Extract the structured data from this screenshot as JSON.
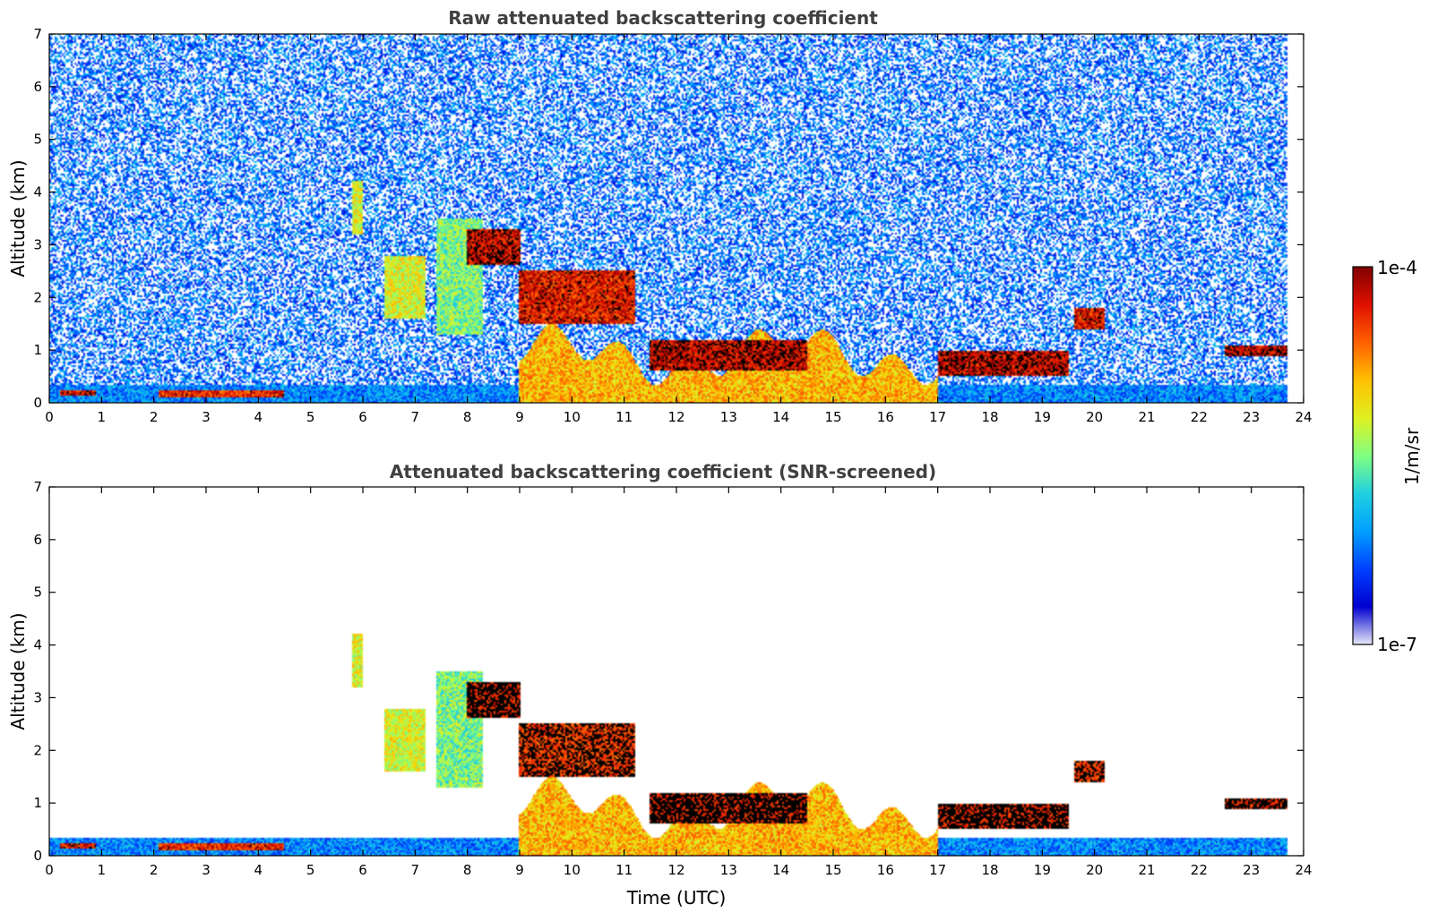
{
  "chart_data": [
    {
      "type": "heatmap",
      "title": "Raw attenuated backscattering coefficient",
      "xlabel": "",
      "ylabel": "Altitude (km)",
      "xlim": [
        0,
        24
      ],
      "ylim": [
        0,
        7
      ],
      "xticks": [
        "0",
        "1",
        "2",
        "3",
        "4",
        "5",
        "6",
        "7",
        "8",
        "9",
        "10",
        "11",
        "12",
        "13",
        "14",
        "15",
        "16",
        "17",
        "18",
        "19",
        "20",
        "21",
        "22",
        "23",
        "24"
      ],
      "yticks": [
        "0",
        "1",
        "2",
        "3",
        "4",
        "5",
        "6",
        "7"
      ],
      "data_end_hour": 23.7,
      "screened": false,
      "features": [
        {
          "name": "boundary layer",
          "t0": 0,
          "t1": 23.7,
          "alt_top": 0.35,
          "level": 0.28
        },
        {
          "name": "surface layer",
          "t0": 0.2,
          "t1": 0.9,
          "alt_top": 0.25,
          "alt_bottom": 0.15,
          "level": 0.92
        },
        {
          "name": "surface layer",
          "t0": 2.1,
          "t1": 4.5,
          "alt_top": 0.25,
          "alt_bottom": 0.1,
          "level": 0.88
        },
        {
          "name": "aerosol plume",
          "t0": 5.8,
          "t1": 6.0,
          "alt_top": 4.2,
          "alt_bottom": 3.2,
          "level": 0.6
        },
        {
          "name": "aerosol plume",
          "t0": 6.4,
          "t1": 7.2,
          "alt_top": 2.8,
          "alt_bottom": 1.6,
          "level": 0.6
        },
        {
          "name": "aerosol plume",
          "t0": 7.4,
          "t1": 8.3,
          "alt_top": 3.5,
          "alt_bottom": 1.3,
          "level": 0.5
        },
        {
          "name": "cloud",
          "t0": 8.0,
          "t1": 9.0,
          "alt_top": 3.3,
          "alt_bottom": 2.6,
          "level": 0.95
        },
        {
          "name": "cloud",
          "t0": 9.0,
          "t1": 11.2,
          "alt_top": 2.5,
          "alt_bottom": 1.5,
          "level": 0.9
        },
        {
          "name": "cloud",
          "t0": 11.5,
          "t1": 14.5,
          "alt_top": 1.2,
          "alt_bottom": 0.6,
          "level": 0.95
        },
        {
          "name": "cloud",
          "t0": 17.0,
          "t1": 19.5,
          "alt_top": 1.0,
          "alt_bottom": 0.5,
          "level": 0.95
        },
        {
          "name": "cloud",
          "t0": 19.6,
          "t1": 20.2,
          "alt_top": 1.8,
          "alt_bottom": 1.4,
          "level": 0.9
        },
        {
          "name": "cloud",
          "t0": 22.5,
          "t1": 23.7,
          "alt_top": 1.1,
          "alt_bottom": 0.9,
          "level": 0.95
        },
        {
          "name": "convective layer",
          "t0": 9.0,
          "t1": 17.0,
          "alt_top": 1.5,
          "alt_bottom": 0.0,
          "level": 0.7
        }
      ]
    },
    {
      "type": "heatmap",
      "title": "Attenuated backscattering coefficient (SNR-screened)",
      "xlabel": "Time (UTC)",
      "ylabel": "Altitude (km)",
      "xlim": [
        0,
        24
      ],
      "ylim": [
        0,
        7
      ],
      "xticks": [
        "0",
        "1",
        "2",
        "3",
        "4",
        "5",
        "6",
        "7",
        "8",
        "9",
        "10",
        "11",
        "12",
        "13",
        "14",
        "15",
        "16",
        "17",
        "18",
        "19",
        "20",
        "21",
        "22",
        "23",
        "24"
      ],
      "yticks": [
        "0",
        "1",
        "2",
        "3",
        "4",
        "5",
        "6",
        "7"
      ],
      "data_end_hour": 23.7,
      "screened": true
    }
  ],
  "colorbar": {
    "label": "1/m/sr",
    "max_label": "1e-4",
    "min_label": "1e-7",
    "colors": [
      "#e8e8f8",
      "#0000d0",
      "#0040ff",
      "#00a0ff",
      "#20d0e0",
      "#80ff80",
      "#e0f020",
      "#ffc000",
      "#ff6000",
      "#e01000",
      "#800000"
    ]
  }
}
